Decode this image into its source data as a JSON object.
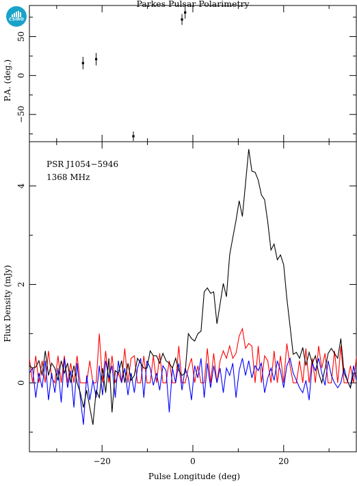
{
  "logo": {
    "text": "CSIRO",
    "color": "#1aa3c8"
  },
  "title": "Parkes Pulsar Polarimetry",
  "source_label": "PSR J1054−5946",
  "frequency_label": "1368 MHz",
  "chart_data": [
    {
      "type": "scatter",
      "panel": "top",
      "ylabel": "P.A. (deg.)",
      "xlim": [
        -36,
        36
      ],
      "ylim": [
        -85,
        90
      ],
      "yticks": [
        -50,
        0,
        50
      ],
      "ytick_labels": [
        "−50",
        "0",
        "50"
      ],
      "points": [
        {
          "x": -24.2,
          "y": 16,
          "err": 8
        },
        {
          "x": -21.3,
          "y": 21,
          "err": 8
        },
        {
          "x": -13.1,
          "y": -78,
          "err": 6
        },
        {
          "x": -2.4,
          "y": 72,
          "err": 7
        },
        {
          "x": -1.7,
          "y": 81,
          "err": 8
        }
      ]
    },
    {
      "type": "line",
      "panel": "bottom",
      "xlabel": "Pulse Longitude (deg)",
      "ylabel": "Flux Density (mJy)",
      "xlim": [
        -36,
        36
      ],
      "ylim": [
        -1.4,
        4.9
      ],
      "xticks": [
        -20,
        0,
        20
      ],
      "xtick_labels": [
        "−20",
        "0",
        "20"
      ],
      "yticks": [
        0,
        2,
        4
      ],
      "ytick_labels": [
        "0",
        "2",
        "4"
      ],
      "x_start": -36,
      "x_step": 0.7,
      "series": [
        {
          "color": "#000000",
          "values": [
            0.35,
            0.3,
            0.32,
            0.45,
            0.15,
            0.65,
            0.15,
            0.4,
            0.3,
            0.05,
            0.45,
            0.2,
            0.4,
            0.0,
            0.35,
            0.0,
            -0.2,
            -0.5,
            -0.15,
            -0.5,
            -0.85,
            -0.15,
            -0.3,
            0.3,
            -0.2,
            0.5,
            -0.6,
            0.25,
            0.2,
            0.45,
            0.0,
            0.4,
            0.05,
            0.15,
            0.5,
            0.4,
            0.3,
            0.3,
            0.65,
            0.55,
            0.55,
            0.4,
            0.6,
            0.45,
            0.4,
            0.3,
            0.5,
            0.25,
            0.15,
            0.2,
            1.0,
            0.9,
            0.85,
            1.0,
            1.05,
            1.85,
            1.93,
            1.82,
            1.85,
            1.2,
            1.6,
            2.02,
            1.75,
            2.6,
            2.95,
            3.3,
            3.7,
            3.38,
            4.05,
            4.75,
            4.3,
            4.28,
            4.12,
            3.82,
            3.72,
            3.27,
            2.7,
            2.82,
            2.5,
            2.6,
            2.4,
            1.72,
            1.15,
            0.58,
            0.62,
            0.5,
            0.72,
            0.35,
            0.62,
            0.4,
            0.55,
            0.2,
            0.0,
            0.28,
            0.6,
            0.7,
            0.6,
            0.5,
            0.9,
            0.2,
            0.05,
            -0.1,
            0.2,
            0.2,
            0.5,
            0.35,
            0.2,
            0.05,
            0.12,
            0.05,
            0.25,
            0.15,
            0.4,
            0.25,
            0.15,
            -0.1,
            -0.45,
            0.1,
            -0.15,
            -0.95,
            -0.3,
            0.55,
            0.3,
            0.55
          ],
          "connect": "line"
        },
        {
          "color": "#ff0000",
          "values": [
            0.5,
            0.0,
            0.55,
            0.0,
            0.45,
            0.0,
            0.65,
            0.1,
            0.0,
            0.55,
            0.0,
            0.55,
            0.0,
            0.4,
            0.0,
            0.55,
            0.0,
            0.0,
            0.0,
            0.45,
            0.0,
            0.0,
            1.0,
            0.0,
            0.65,
            0.0,
            0.55,
            0.0,
            0.2,
            0.0,
            0.7,
            0.0,
            0.5,
            0.55,
            0.0,
            0.0,
            0.55,
            0.0,
            0.0,
            0.55,
            0.0,
            0.6,
            0.0,
            0.0,
            0.45,
            0.0,
            0.0,
            0.75,
            0.0,
            0.0,
            0.3,
            0.5,
            0.0,
            0.35,
            0.0,
            0.0,
            0.7,
            0.0,
            0.6,
            0.0,
            0.45,
            0.65,
            0.5,
            0.75,
            0.5,
            0.6,
            0.95,
            1.1,
            0.7,
            0.8,
            0.75,
            0.0,
            0.75,
            0.0,
            0.55,
            0.45,
            0.0,
            0.65,
            0.0,
            0.55,
            0.0,
            0.8,
            0.35,
            0.0,
            0.0,
            0.45,
            0.0,
            0.7,
            0.0,
            0.5,
            0.0,
            0.75,
            0.3,
            0.6,
            0.0,
            0.0,
            0.65,
            0.0,
            0.75,
            0.0,
            0.0,
            0.35,
            0.0,
            0.6,
            0.0,
            0.55,
            0.0,
            0.0,
            0.5,
            0.0,
            0.65,
            0.0,
            0.0,
            0.6,
            0.0,
            0.0,
            0.55,
            0.0,
            0.3,
            0.55,
            0.0,
            0.6,
            0.0,
            0.65
          ],
          "connect": "line"
        },
        {
          "color": "#0000ff",
          "values": [
            0.2,
            0.3,
            -0.3,
            0.2,
            -0.1,
            0.45,
            -0.35,
            0.2,
            -0.2,
            0.3,
            -0.4,
            0.5,
            -0.1,
            0.25,
            -0.5,
            0.4,
            -0.3,
            -0.85,
            0.15,
            -0.35,
            0.05,
            -0.3,
            0.35,
            -0.25,
            0.45,
            0.1,
            0.35,
            -0.3,
            0.45,
            0.0,
            0.3,
            -0.25,
            0.2,
            -0.2,
            0.3,
            0.5,
            -0.3,
            0.45,
            0.3,
            -0.05,
            0.2,
            -0.15,
            0.35,
            0.25,
            -0.6,
            0.3,
            0.0,
            0.4,
            -0.15,
            0.3,
            0.1,
            -0.35,
            0.35,
            0.1,
            0.5,
            -0.3,
            0.4,
            -0.1,
            0.35,
            0.0,
            0.3,
            -0.2,
            0.3,
            0.15,
            0.4,
            -0.3,
            0.25,
            0.5,
            0.15,
            0.45,
            0.1,
            0.35,
            0.25,
            0.4,
            -0.2,
            0.1,
            0.3,
            0.05,
            0.45,
            0.25,
            -0.1,
            0.35,
            0.5,
            0.2,
            0.05,
            -0.1,
            -0.2,
            0.05,
            -0.35,
            0.4,
            0.25,
            0.5,
            0.2,
            -0.05,
            0.45,
            0.15,
            0.0,
            -0.1,
            0.0,
            0.3,
            0.05,
            -0.1,
            0.35,
            0.0,
            0.45,
            0.1,
            0.3,
            0.05,
            0.45,
            0.25,
            0.45,
            -0.05,
            0.2,
            -0.1,
            0.35,
            0.45,
            0.2,
            0.0,
            0.35,
            -0.3,
            0.1,
            0.55,
            0.45,
            0.7
          ],
          "connect": "line"
        }
      ]
    }
  ]
}
